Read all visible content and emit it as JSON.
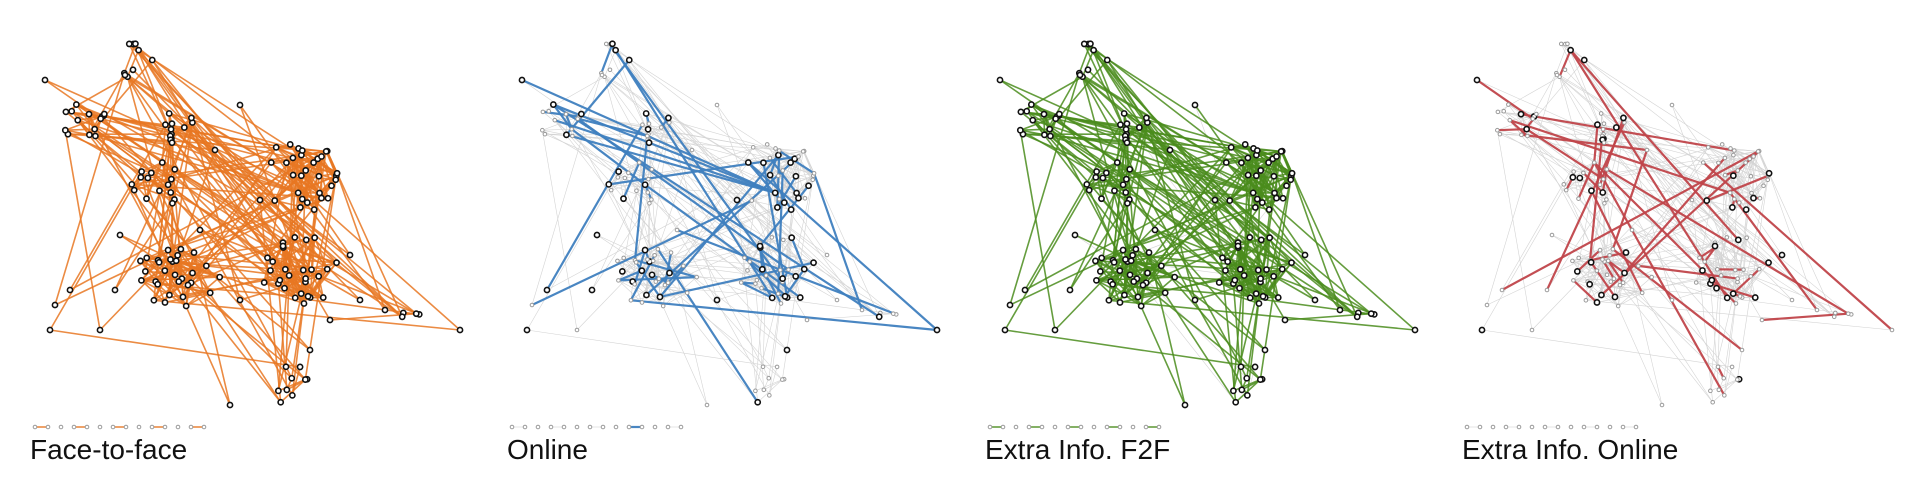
{
  "panels": [
    {
      "id": "f2f",
      "label": "Face-to-face",
      "color": "#e87722"
    },
    {
      "id": "online",
      "label": "Online",
      "color": "#3f7fbf"
    },
    {
      "id": "extra-f2f",
      "label": "Extra Info. F2F",
      "color": "#4a8c1c"
    },
    {
      "id": "extra-online",
      "label": "Extra Info. Online",
      "color": "#c0444a"
    }
  ],
  "colors": {
    "inactive_edge": "#d4d4d4",
    "inactive_node": "#9a9a9a",
    "node_outline": "#111111",
    "node_fill": "#ffffff"
  }
}
